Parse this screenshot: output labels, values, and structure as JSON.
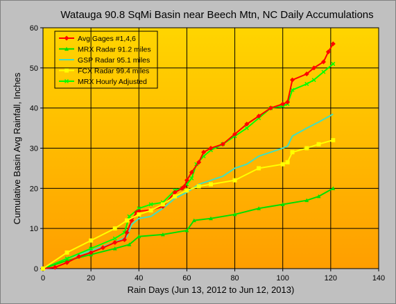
{
  "chart_data": {
    "type": "line",
    "title": "Watauga 90.8 SqMi Basin near Beech Mtn, NC Daily Accumulations",
    "xlabel": "Rain Days (Jun 13, 2012 to Jun 12, 2013)",
    "ylabel": "Cumulative Basin Avg Rainfall, Inches",
    "xlim": [
      0,
      140
    ],
    "ylim": [
      0,
      60
    ],
    "x_ticks": [
      "0",
      "20",
      "40",
      "60",
      "80",
      "100",
      "120",
      "140"
    ],
    "y_ticks": [
      "0",
      "10",
      "20",
      "30",
      "40",
      "50",
      "60"
    ],
    "grid": true,
    "legend_position": "top-left",
    "background_gradient": [
      "#ffd500",
      "#ff9e00"
    ],
    "series": [
      {
        "name": "Avg Gages #1,4,6",
        "color": "#ff0000",
        "marker": "diamond",
        "points": [
          [
            0,
            0
          ],
          [
            5,
            0.3
          ],
          [
            10,
            1.5
          ],
          [
            15,
            3
          ],
          [
            20,
            4
          ],
          [
            25,
            5.2
          ],
          [
            30,
            6.5
          ],
          [
            34,
            7.2
          ],
          [
            35,
            9
          ],
          [
            37,
            12
          ],
          [
            39,
            14
          ],
          [
            40,
            14.3
          ],
          [
            45,
            14.6
          ],
          [
            50,
            15.5
          ],
          [
            55,
            19
          ],
          [
            58,
            20
          ],
          [
            59,
            20.5
          ],
          [
            60,
            22
          ],
          [
            62,
            24
          ],
          [
            65,
            26.5
          ],
          [
            67,
            29
          ],
          [
            70,
            30
          ],
          [
            75,
            31
          ],
          [
            80,
            33.5
          ],
          [
            85,
            36
          ],
          [
            90,
            38
          ],
          [
            95,
            40
          ],
          [
            100,
            41
          ],
          [
            102,
            41.5
          ],
          [
            104,
            47
          ],
          [
            110,
            48.5
          ],
          [
            113,
            50
          ],
          [
            117,
            51.5
          ],
          [
            119,
            54
          ],
          [
            121,
            56
          ]
        ]
      },
      {
        "name": "MRX Radar 91.2 miles",
        "color": "#00e000",
        "marker": "triangle",
        "points": [
          [
            0,
            0
          ],
          [
            10,
            2
          ],
          [
            20,
            3.5
          ],
          [
            30,
            5
          ],
          [
            36,
            6
          ],
          [
            40,
            8
          ],
          [
            50,
            8.5
          ],
          [
            60,
            9.5
          ],
          [
            63,
            12
          ],
          [
            70,
            12.5
          ],
          [
            80,
            13.5
          ],
          [
            90,
            15
          ],
          [
            100,
            16
          ],
          [
            110,
            17
          ],
          [
            115,
            18
          ],
          [
            121,
            20
          ]
        ]
      },
      {
        "name": "GSP Radar 95.1 miles",
        "color": "#40e0c0",
        "marker": "none",
        "points": [
          [
            0,
            0
          ],
          [
            10,
            2.5
          ],
          [
            20,
            4.5
          ],
          [
            30,
            6.5
          ],
          [
            35,
            8
          ],
          [
            37,
            11
          ],
          [
            40,
            12.5
          ],
          [
            45,
            13
          ],
          [
            50,
            15
          ],
          [
            55,
            17.5
          ],
          [
            60,
            19
          ],
          [
            65,
            21
          ],
          [
            70,
            22
          ],
          [
            75,
            23
          ],
          [
            80,
            25
          ],
          [
            85,
            26
          ],
          [
            90,
            28
          ],
          [
            95,
            29
          ],
          [
            100,
            30
          ],
          [
            102,
            30.5
          ],
          [
            104,
            33
          ],
          [
            110,
            35
          ],
          [
            115,
            36.5
          ],
          [
            121,
            38.5
          ]
        ]
      },
      {
        "name": "FCX Radar 99.4 miles",
        "color": "#ffff00",
        "marker": "square",
        "points": [
          [
            0,
            0
          ],
          [
            10,
            4
          ],
          [
            20,
            7
          ],
          [
            30,
            10
          ],
          [
            35,
            12
          ],
          [
            40,
            13.5
          ],
          [
            45,
            14.5
          ],
          [
            50,
            16
          ],
          [
            55,
            18
          ],
          [
            60,
            19.5
          ],
          [
            65,
            20.5
          ],
          [
            70,
            21
          ],
          [
            80,
            22
          ],
          [
            90,
            25
          ],
          [
            100,
            26
          ],
          [
            102,
            26.5
          ],
          [
            104,
            29
          ],
          [
            110,
            30
          ],
          [
            115,
            31
          ],
          [
            121,
            32
          ]
        ]
      },
      {
        "name": "MRX Hourly Adjusted",
        "color": "#00ff00",
        "marker": "x",
        "points": [
          [
            0,
            0
          ],
          [
            10,
            2.5
          ],
          [
            20,
            5
          ],
          [
            30,
            7.5
          ],
          [
            34,
            9
          ],
          [
            36,
            13
          ],
          [
            40,
            15
          ],
          [
            45,
            16
          ],
          [
            50,
            16.5
          ],
          [
            55,
            19.5
          ],
          [
            58,
            20
          ],
          [
            60,
            21
          ],
          [
            62,
            22.5
          ],
          [
            64,
            26
          ],
          [
            67,
            28
          ],
          [
            70,
            29.5
          ],
          [
            75,
            31
          ],
          [
            80,
            33
          ],
          [
            85,
            35
          ],
          [
            90,
            37.5
          ],
          [
            95,
            40
          ],
          [
            100,
            40.5
          ],
          [
            102,
            41
          ],
          [
            104,
            44.5
          ],
          [
            110,
            46
          ],
          [
            113,
            47
          ],
          [
            117,
            49
          ],
          [
            121,
            51
          ]
        ]
      }
    ]
  }
}
